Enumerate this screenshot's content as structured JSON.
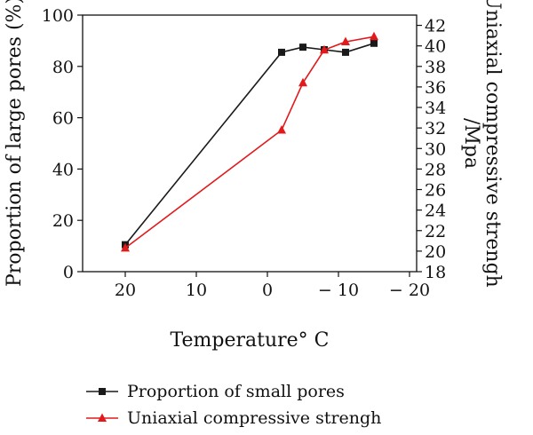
{
  "chart_data": {
    "type": "line",
    "xlabel": "Temperature° C",
    "ylabel_left": "Proportion of large pores (%)",
    "ylabel_right_lines": [
      "Uniaxial compressive strengh",
      "/Mpa"
    ],
    "x_ticks": [
      {
        "value": 20,
        "label": "20"
      },
      {
        "value": 10,
        "label": "10"
      },
      {
        "value": 0,
        "label": "0"
      },
      {
        "value": -10,
        "label": "− 10"
      },
      {
        "value": -20,
        "label": "− 20"
      }
    ],
    "xlim": [
      26,
      -21
    ],
    "ylim_left": [
      0,
      100
    ],
    "y_left_ticks": [
      0,
      20,
      40,
      60,
      80,
      100
    ],
    "ylim_right": [
      18,
      43
    ],
    "y_right_ticks": [
      18,
      20,
      22,
      24,
      26,
      28,
      30,
      32,
      34,
      36,
      38,
      40,
      42
    ],
    "series": [
      {
        "name": "Proportion of small pores",
        "color": "#1a1a1a",
        "marker": "square",
        "axis": "left",
        "points": [
          {
            "x": 20,
            "y": 10.5
          },
          {
            "x": -2,
            "y": 85.5
          },
          {
            "x": -5,
            "y": 87.5
          },
          {
            "x": -8,
            "y": 86.5
          },
          {
            "x": -11,
            "y": 85.5
          },
          {
            "x": -15,
            "y": 89
          }
        ]
      },
      {
        "name": "Uniaxial compressive strengh",
        "color": "#e31a1c",
        "marker": "triangle",
        "axis": "right",
        "points": [
          {
            "x": 20,
            "y": 20.3
          },
          {
            "x": -2,
            "y": 31.8
          },
          {
            "x": -5,
            "y": 36.4
          },
          {
            "x": -8,
            "y": 39.6
          },
          {
            "x": -11,
            "y": 40.4
          },
          {
            "x": -15,
            "y": 40.9
          }
        ]
      }
    ],
    "legend_position": "bottom"
  }
}
